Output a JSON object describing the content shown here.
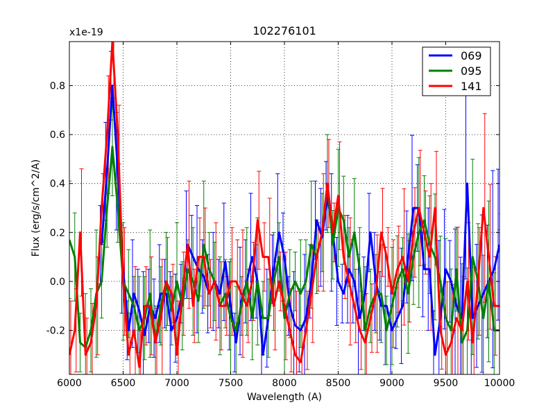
{
  "chart_data": {
    "type": "line",
    "title": "102276101",
    "xlabel": "Wavelength (A)",
    "ylabel": "Flux (erg/s/cm^2/A)",
    "y_scale_label": "x1e-19",
    "xlim": [
      6000,
      10000
    ],
    "ylim": [
      -0.38,
      0.98
    ],
    "xticks": [
      6000,
      6500,
      7000,
      7500,
      8000,
      8500,
      9000,
      9500,
      10000
    ],
    "yticks": [
      -0.2,
      0.0,
      0.2,
      0.4,
      0.6,
      0.8
    ],
    "xtick_labels": [
      "6000",
      "6500",
      "7000",
      "7500",
      "8000",
      "8500",
      "9000",
      "9500",
      "10000"
    ],
    "ytick_labels": [
      "-0.2",
      "0.0",
      "0.2",
      "0.4",
      "0.6",
      "0.8"
    ],
    "grid": true,
    "legend_position": "top-right",
    "series": [
      {
        "name": "069",
        "color": "#0000ff",
        "x": [
          6300,
          6350,
          6400,
          6450,
          6500,
          6550,
          6600,
          6650,
          6700,
          6750,
          6800,
          6850,
          6900,
          6950,
          7000,
          7050,
          7100,
          7150,
          7200,
          7250,
          7300,
          7350,
          7400,
          7450,
          7500,
          7550,
          7600,
          7650,
          7700,
          7750,
          7800,
          7850,
          7900,
          7950,
          8000,
          8050,
          8100,
          8150,
          8200,
          8250,
          8300,
          8350,
          8400,
          8450,
          8500,
          8550,
          8600,
          8650,
          8700,
          8750,
          8800,
          8850,
          8900,
          8950,
          9000,
          9050,
          9100,
          9150,
          9200,
          9250,
          9300,
          9350,
          9400,
          9450,
          9500,
          9550,
          9600,
          9650,
          9700,
          9750,
          9800,
          9850,
          9900,
          9950,
          10000
        ],
        "values": [
          0.15,
          0.45,
          0.8,
          0.45,
          0.05,
          -0.2,
          -0.05,
          -0.12,
          -0.22,
          -0.1,
          -0.15,
          -0.05,
          -0.05,
          -0.2,
          -0.15,
          -0.05,
          0.15,
          0.1,
          0.05,
          0.02,
          -0.05,
          0.0,
          -0.05,
          0.08,
          -0.1,
          -0.25,
          -0.08,
          0.0,
          0.1,
          0.0,
          -0.3,
          -0.15,
          0.05,
          0.2,
          0.1,
          -0.1,
          -0.18,
          -0.2,
          -0.15,
          0.0,
          0.25,
          0.18,
          0.35,
          0.2,
          0.0,
          -0.05,
          0.05,
          0.0,
          -0.15,
          -0.05,
          0.2,
          0.0,
          -0.1,
          -0.1,
          -0.2,
          -0.15,
          -0.1,
          0.1,
          0.3,
          0.3,
          0.05,
          0.05,
          -0.3,
          -0.15,
          0.05,
          0.0,
          -0.1,
          -0.15,
          0.4,
          -0.15,
          -0.1,
          -0.05,
          0.0,
          0.05,
          0.15
        ]
      },
      {
        "name": "095",
        "color": "#008000",
        "x": [
          6000,
          6050,
          6100,
          6150,
          6200,
          6250,
          6300,
          6350,
          6400,
          6450,
          6500,
          6550,
          6600,
          6650,
          6700,
          6750,
          6800,
          6850,
          6900,
          6950,
          7000,
          7050,
          7100,
          7150,
          7200,
          7250,
          7300,
          7350,
          7400,
          7450,
          7500,
          7550,
          7600,
          7650,
          7700,
          7750,
          7800,
          7850,
          7900,
          7950,
          8000,
          8050,
          8100,
          8150,
          8200,
          8250,
          8300,
          8350,
          8400,
          8450,
          8500,
          8550,
          8600,
          8650,
          8700,
          8750,
          8800,
          8850,
          8900,
          8950,
          9000,
          9050,
          9100,
          9150,
          9200,
          9250,
          9300,
          9350,
          9400,
          9450,
          9500,
          9550,
          9600,
          9650,
          9700,
          9750,
          9800,
          9850,
          9900,
          9950,
          10000
        ],
        "values": [
          0.17,
          0.1,
          -0.25,
          -0.27,
          -0.2,
          -0.05,
          0.0,
          0.3,
          0.55,
          0.3,
          0.0,
          -0.05,
          -0.1,
          -0.2,
          -0.15,
          -0.05,
          -0.25,
          -0.1,
          0.0,
          -0.12,
          0.0,
          -0.1,
          0.05,
          0.0,
          -0.08,
          0.15,
          0.05,
          0.0,
          -0.1,
          -0.05,
          -0.15,
          -0.2,
          -0.1,
          0.0,
          -0.15,
          0.0,
          -0.15,
          -0.15,
          0.0,
          0.1,
          -0.15,
          -0.05,
          0.0,
          -0.05,
          0.0,
          0.15,
          0.1,
          0.2,
          0.4,
          0.15,
          0.3,
          0.25,
          0.1,
          0.2,
          0.05,
          -0.2,
          -0.1,
          -0.05,
          -0.05,
          -0.2,
          -0.1,
          0.0,
          0.05,
          -0.05,
          0.1,
          0.2,
          0.25,
          0.15,
          0.1,
          0.0,
          -0.15,
          -0.2,
          0.05,
          -0.25,
          -0.2,
          0.1,
          0.0,
          -0.15,
          0.0,
          -0.2,
          -0.2
        ]
      },
      {
        "name": "141",
        "color": "#ff0000",
        "x": [
          6000,
          6050,
          6100,
          6150,
          6200,
          6250,
          6300,
          6350,
          6400,
          6450,
          6500,
          6550,
          6600,
          6650,
          6700,
          6750,
          6800,
          6850,
          6900,
          6950,
          7000,
          7050,
          7100,
          7150,
          7200,
          7250,
          7300,
          7350,
          7400,
          7450,
          7500,
          7550,
          7600,
          7650,
          7700,
          7750,
          7800,
          7850,
          7900,
          7950,
          8000,
          8050,
          8100,
          8150,
          8200,
          8250,
          8300,
          8350,
          8400,
          8450,
          8500,
          8550,
          8600,
          8650,
          8700,
          8750,
          8800,
          8850,
          8900,
          8950,
          9000,
          9050,
          9100,
          9150,
          9200,
          9250,
          9300,
          9350,
          9400,
          9450,
          9500,
          9550,
          9600,
          9650,
          9700,
          9750,
          9800,
          9850,
          9900,
          9950,
          10000
        ],
        "values": [
          -0.3,
          -0.2,
          0.2,
          -0.3,
          -0.25,
          -0.1,
          0.3,
          0.6,
          0.98,
          0.6,
          0.0,
          -0.3,
          -0.2,
          -0.35,
          -0.1,
          -0.1,
          -0.25,
          -0.15,
          0.0,
          -0.05,
          -0.3,
          -0.05,
          0.15,
          -0.1,
          0.1,
          0.1,
          -0.05,
          0.0,
          -0.1,
          -0.1,
          0.0,
          0.0,
          -0.05,
          -0.1,
          0.0,
          0.25,
          0.1,
          0.1,
          -0.1,
          0.0,
          -0.1,
          -0.2,
          -0.3,
          -0.33,
          -0.2,
          -0.05,
          0.1,
          0.2,
          0.4,
          0.2,
          0.35,
          0.1,
          0.0,
          -0.1,
          -0.2,
          -0.25,
          -0.15,
          -0.05,
          0.2,
          0.1,
          -0.05,
          0.05,
          0.1,
          0.0,
          0.2,
          0.3,
          0.2,
          0.1,
          0.3,
          -0.2,
          -0.3,
          -0.25,
          -0.15,
          -0.2,
          0.0,
          -0.25,
          0.0,
          0.3,
          0.1,
          -0.1,
          -0.1
        ]
      }
    ]
  }
}
